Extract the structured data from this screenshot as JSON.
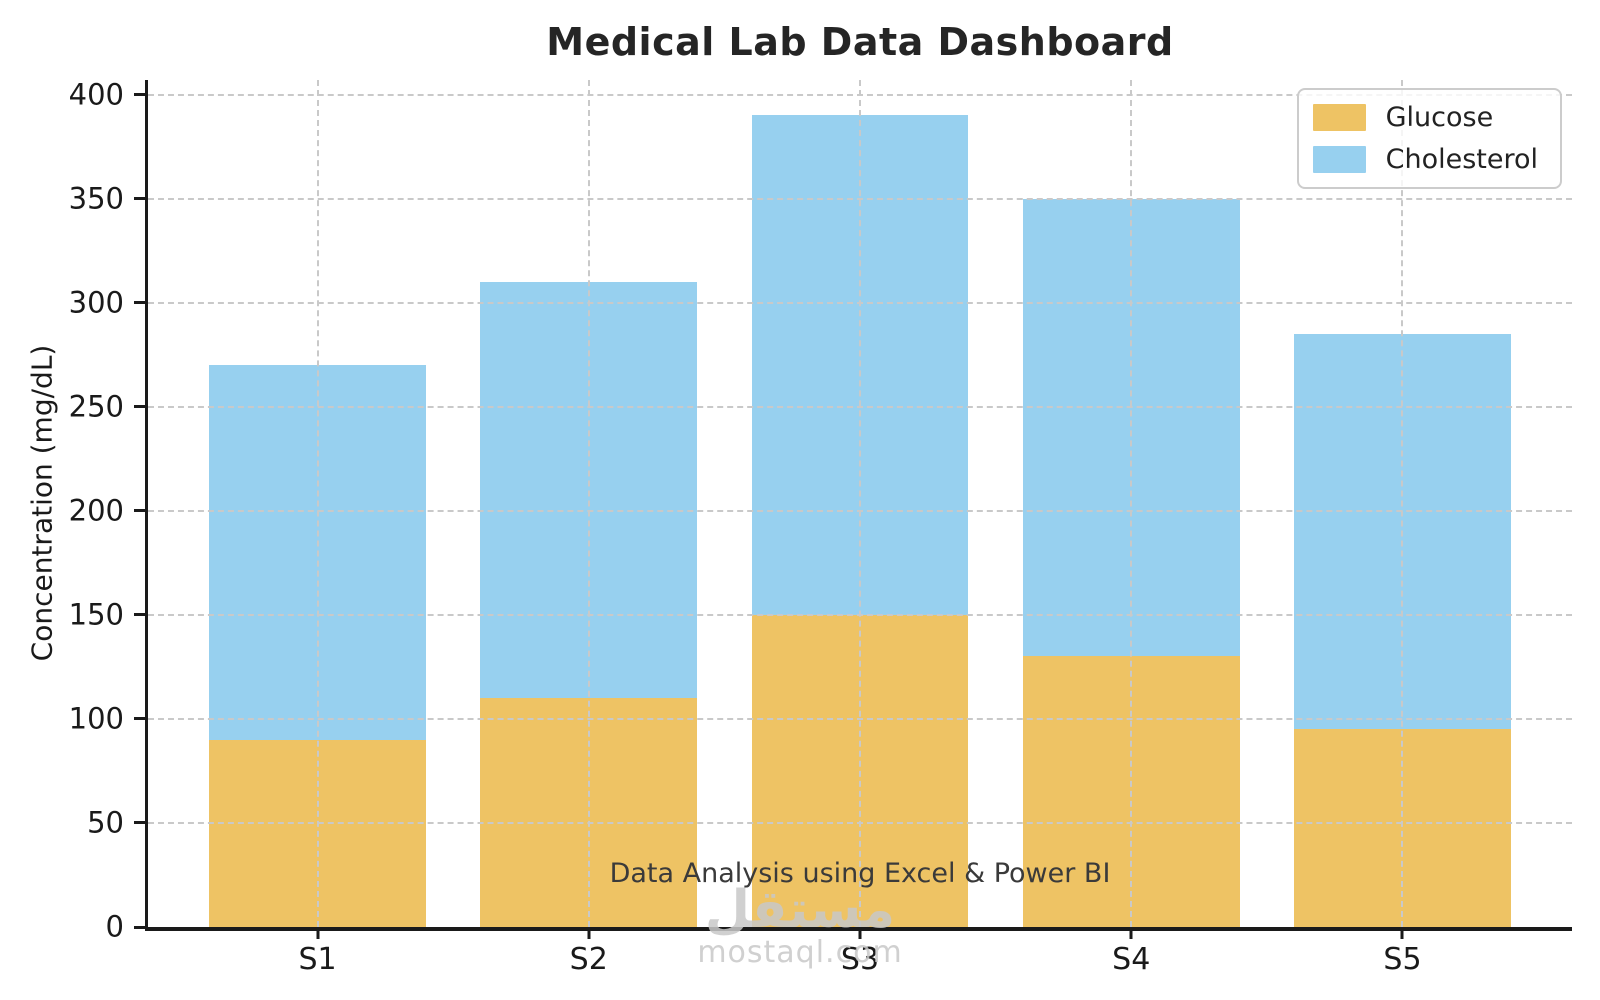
{
  "title": "Medical Lab Data Dashboard",
  "annotation": "Data Analysis using Excel & Power BI",
  "watermark": {
    "logo": "مستقل",
    "site": "mostaql.com"
  },
  "chart_data": {
    "type": "bar",
    "stacked": true,
    "title": "Medical Lab Data Dashboard",
    "xlabel": "",
    "ylabel": "Concentration (mg/dL)",
    "categories": [
      "S1",
      "S2",
      "S3",
      "S4",
      "S5"
    ],
    "series": [
      {
        "name": "Glucose",
        "color": "#EEC364",
        "values": [
          90,
          110,
          150,
          130,
          95
        ]
      },
      {
        "name": "Cholesterol",
        "color": "#97D0EF",
        "values": [
          180,
          200,
          240,
          220,
          190
        ]
      }
    ],
    "stack_totals": [
      270,
      310,
      390,
      350,
      285
    ],
    "yticks": [
      0,
      50,
      100,
      150,
      200,
      250,
      300,
      350,
      400
    ],
    "ylim": [
      0,
      407
    ],
    "xlim_units": [
      -0.625,
      4.625
    ],
    "bar_width_units": 0.8,
    "grid": true,
    "legend": {
      "entries": [
        "Glucose",
        "Cholesterol"
      ],
      "position": "upper right"
    }
  },
  "colors": {
    "glucose": "#EEC364",
    "cholesterol": "#97D0EF",
    "grid": "#C9C9C9",
    "axis": "#1A1A1A",
    "title_text": "#252525",
    "annotation_text": "#3A3A3A",
    "watermark_text": "#C8C8C8"
  }
}
